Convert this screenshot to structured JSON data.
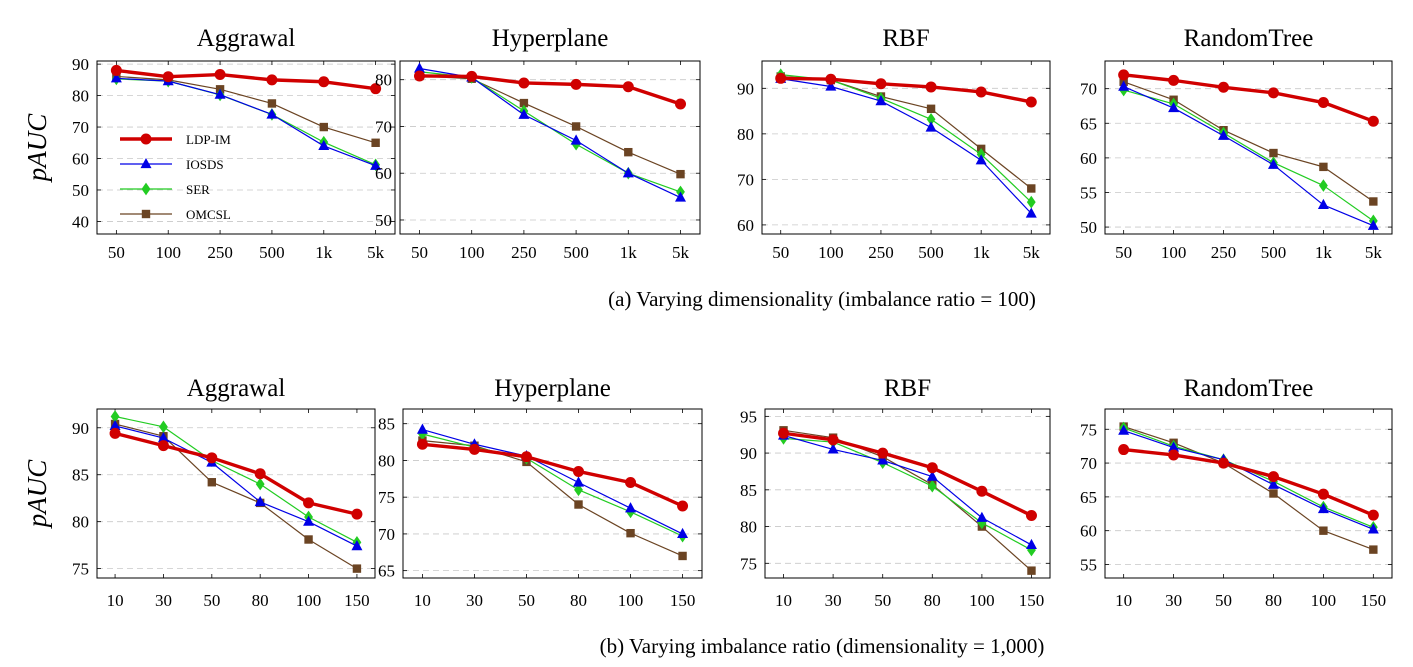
{
  "legend": {
    "placement": "lower-left of first panel in row 1",
    "entries": [
      {
        "name": "LDP-IM",
        "color": "#d00000",
        "marker": "circle"
      },
      {
        "name": "IOSDS",
        "color": "#0000e6",
        "marker": "triangle"
      },
      {
        "name": "SER",
        "color": "#22cc22",
        "marker": "diamond"
      },
      {
        "name": "OMCSL",
        "color": "#6b4423",
        "marker": "square"
      }
    ]
  },
  "rows": [
    {
      "caption": "(a) Varying dimensionality (imbalance ratio = 100)",
      "ylabel": "pAUC"
    },
    {
      "caption": "(b) Varying imbalance ratio (dimensionality = 1,000)",
      "ylabel": "pAUC"
    }
  ],
  "chart_data": [
    {
      "type": "line",
      "row": 0,
      "title": "Aggrawal",
      "categories": [
        "50",
        "100",
        "250",
        "500",
        "1k",
        "5k"
      ],
      "ylim": [
        36,
        91
      ],
      "yticks": [
        40,
        50,
        60,
        70,
        80,
        90
      ],
      "grid": "horizontal dashed",
      "series": [
        {
          "name": "LDP-IM",
          "values": [
            88,
            86,
            86.7,
            85,
            84.4,
            82.2
          ]
        },
        {
          "name": "IOSDS",
          "values": [
            85.5,
            84.6,
            80.3,
            74,
            64,
            57.7
          ]
        },
        {
          "name": "SER",
          "values": [
            85.3,
            84.6,
            80.2,
            74,
            65.2,
            58
          ]
        },
        {
          "name": "OMCSL",
          "values": [
            86.1,
            85,
            82,
            77.5,
            70,
            65
          ]
        }
      ]
    },
    {
      "type": "line",
      "row": 0,
      "title": "Hyperplane",
      "categories": [
        "50",
        "100",
        "250",
        "500",
        "1k",
        "5k"
      ],
      "ylim": [
        47,
        84
      ],
      "yticks": [
        50,
        60,
        70,
        80
      ],
      "grid": "horizontal dashed",
      "series": [
        {
          "name": "LDP-IM",
          "values": [
            80.8,
            80.7,
            79.3,
            79,
            78.5,
            74.8
          ]
        },
        {
          "name": "IOSDS",
          "values": [
            82.4,
            80.5,
            72.5,
            67,
            60,
            54.8
          ]
        },
        {
          "name": "SER",
          "values": [
            81.7,
            80.5,
            73.3,
            66.2,
            60,
            56
          ]
        },
        {
          "name": "OMCSL",
          "values": [
            80.8,
            80.2,
            75,
            70,
            64.5,
            59.8
          ]
        }
      ]
    },
    {
      "type": "line",
      "row": 0,
      "title": "RBF",
      "categories": [
        "50",
        "100",
        "250",
        "500",
        "1k",
        "5k"
      ],
      "ylim": [
        58,
        96
      ],
      "yticks": [
        60,
        70,
        80,
        90
      ],
      "grid": "horizontal dashed",
      "series": [
        {
          "name": "LDP-IM",
          "values": [
            92.2,
            92,
            91,
            90.3,
            89.2,
            87
          ]
        },
        {
          "name": "IOSDS",
          "values": [
            92.1,
            90.4,
            87.2,
            81.4,
            74.2,
            62.5
          ]
        },
        {
          "name": "SER",
          "values": [
            93,
            91.8,
            87.8,
            83.2,
            75.5,
            65
          ]
        },
        {
          "name": "OMCSL",
          "values": [
            92.6,
            91.8,
            88.2,
            85.5,
            76.7,
            68
          ]
        }
      ]
    },
    {
      "type": "line",
      "row": 0,
      "title": "RandomTree",
      "categories": [
        "50",
        "100",
        "250",
        "500",
        "1k",
        "5k"
      ],
      "ylim": [
        49,
        74
      ],
      "yticks": [
        50,
        55,
        60,
        65,
        70
      ],
      "grid": "horizontal dashed",
      "series": [
        {
          "name": "LDP-IM",
          "values": [
            72,
            71.2,
            70.2,
            69.4,
            68,
            65.3
          ]
        },
        {
          "name": "IOSDS",
          "values": [
            70.3,
            67.2,
            63.2,
            59,
            53.2,
            50.2
          ]
        },
        {
          "name": "SER",
          "values": [
            69.8,
            67.8,
            63.6,
            59.3,
            56,
            50.9
          ]
        },
        {
          "name": "OMCSL",
          "values": [
            71,
            68.4,
            64,
            60.7,
            58.7,
            53.7
          ]
        }
      ]
    },
    {
      "type": "line",
      "row": 1,
      "title": "Aggrawal",
      "categories": [
        "10",
        "30",
        "50",
        "80",
        "100",
        "150"
      ],
      "ylim": [
        74,
        92
      ],
      "yticks": [
        75,
        80,
        85,
        90
      ],
      "grid": "horizontal dashed",
      "series": [
        {
          "name": "LDP-IM",
          "values": [
            89.4,
            88.1,
            86.8,
            85.1,
            82,
            80.8
          ]
        },
        {
          "name": "IOSDS",
          "values": [
            90.2,
            88.9,
            86.3,
            82.1,
            80,
            77.4
          ]
        },
        {
          "name": "SER",
          "values": [
            91.2,
            90.1,
            86.5,
            84,
            80.5,
            77.8
          ]
        },
        {
          "name": "OMCSL",
          "values": [
            90.4,
            89.1,
            84.2,
            82,
            78.1,
            75
          ]
        }
      ]
    },
    {
      "type": "line",
      "row": 1,
      "title": "Hyperplane",
      "categories": [
        "10",
        "30",
        "50",
        "80",
        "100",
        "150"
      ],
      "ylim": [
        64,
        87
      ],
      "yticks": [
        65,
        70,
        75,
        80,
        85
      ],
      "grid": "horizontal dashed",
      "series": [
        {
          "name": "LDP-IM",
          "values": [
            82.2,
            81.5,
            80.5,
            78.5,
            77,
            73.8
          ]
        },
        {
          "name": "IOSDS",
          "values": [
            84.2,
            82.2,
            80.6,
            77,
            73.5,
            70
          ]
        },
        {
          "name": "SER",
          "values": [
            83.6,
            81.8,
            80.3,
            76,
            73,
            69.7
          ]
        },
        {
          "name": "OMCSL",
          "values": [
            82.7,
            82,
            79.8,
            74,
            70.1,
            67
          ]
        }
      ]
    },
    {
      "type": "line",
      "row": 1,
      "title": "RBF",
      "categories": [
        "10",
        "30",
        "50",
        "80",
        "100",
        "150"
      ],
      "ylim": [
        73,
        96
      ],
      "yticks": [
        75,
        80,
        85,
        90,
        95
      ],
      "grid": "horizontal dashed",
      "series": [
        {
          "name": "LDP-IM",
          "values": [
            92.7,
            91.8,
            90,
            88,
            84.8,
            81.5
          ]
        },
        {
          "name": "IOSDS",
          "values": [
            92.4,
            90.5,
            89,
            86.8,
            81.2,
            77.5
          ]
        },
        {
          "name": "SER",
          "values": [
            92,
            91.5,
            88.7,
            85.5,
            80.5,
            76.8
          ]
        },
        {
          "name": "OMCSL",
          "values": [
            93.1,
            92.1,
            89.5,
            85.7,
            80,
            74
          ]
        }
      ]
    },
    {
      "type": "line",
      "row": 1,
      "title": "RandomTree",
      "categories": [
        "10",
        "30",
        "50",
        "80",
        "100",
        "150"
      ],
      "ylim": [
        53,
        78
      ],
      "yticks": [
        55,
        60,
        65,
        70,
        75
      ],
      "grid": "horizontal dashed",
      "series": [
        {
          "name": "LDP-IM",
          "values": [
            72,
            71.2,
            70,
            68,
            65.4,
            62.3
          ]
        },
        {
          "name": "IOSDS",
          "values": [
            74.8,
            72.3,
            70.5,
            66.8,
            63.2,
            60.2
          ]
        },
        {
          "name": "SER",
          "values": [
            75.2,
            72.5,
            70.5,
            67.3,
            63.5,
            60.5
          ]
        },
        {
          "name": "OMCSL",
          "values": [
            75.4,
            73,
            70,
            65.5,
            60,
            57.2
          ]
        }
      ]
    }
  ]
}
